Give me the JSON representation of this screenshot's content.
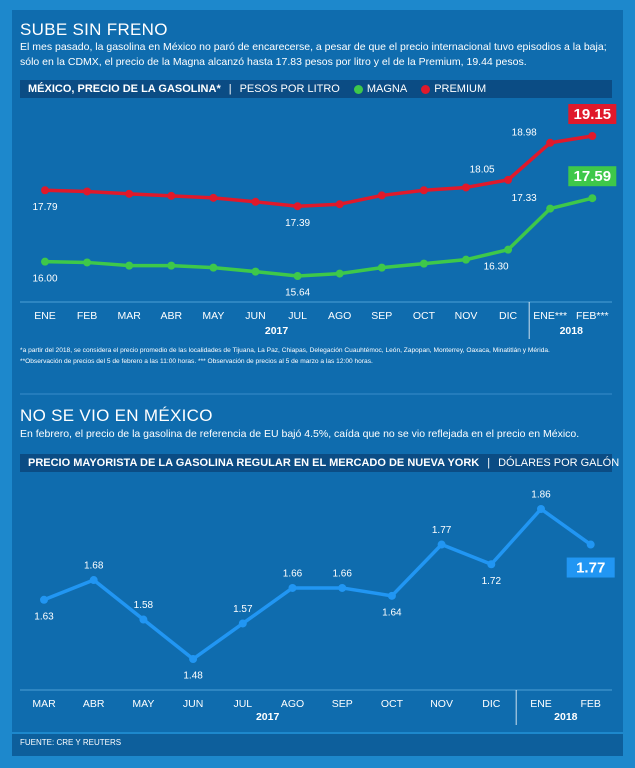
{
  "chart_data": [
    {
      "type": "line",
      "title": "SUBE SIN FRENO",
      "subtitle": "El mes pasado, la gasolina en México no paró de encarecerse, a pesar de que el precio internacional tuvo episodios a la baja; sólo en la CDMX, el precio de la Magna alcanzó hasta 17.83 pesos por litro y el de la Premium, 19.44 pesos.",
      "chart_title": "MÉXICO, PRECIO DE LA GASOLINA*",
      "unit": "PESOS POR LITRO",
      "categories": [
        "ENE",
        "FEB",
        "MAR",
        "ABR",
        "MAY",
        "JUN",
        "JUL",
        "AGO",
        "SEP",
        "OCT",
        "NOV",
        "DIC",
        "ENE***",
        "FEB***"
      ],
      "groups": [
        {
          "label": "2017",
          "count": 12
        },
        {
          "label": "2018",
          "count": 2
        }
      ],
      "series": [
        {
          "name": "MAGNA",
          "color": "#3ec84a",
          "values": [
            16.0,
            15.98,
            15.9,
            15.9,
            15.85,
            15.75,
            15.64,
            15.7,
            15.85,
            15.95,
            16.05,
            16.3,
            17.33,
            17.59
          ],
          "value_labels": [
            "16.00",
            null,
            null,
            null,
            null,
            null,
            "15.64",
            null,
            null,
            null,
            null,
            "16.30",
            "17.33",
            "17.59"
          ]
        },
        {
          "name": "PREMIUM",
          "color": "#e0192b",
          "values": [
            17.79,
            17.76,
            17.7,
            17.65,
            17.6,
            17.5,
            17.39,
            17.44,
            17.66,
            17.79,
            17.86,
            18.05,
            18.98,
            19.15
          ],
          "value_labels": [
            "17.79",
            null,
            null,
            null,
            null,
            null,
            "17.39",
            null,
            null,
            null,
            null,
            "18.05",
            "18.98",
            "19.15"
          ]
        }
      ],
      "notes": [
        "*a partir del 2018, se considera el precio promedio de las localidades de Tijuana, La Paz, Chiapas, Delegación Cuauhtémoc, León, Zapopan, Monterrey, Oaxaca, Minatitlán y Mérida.",
        "**Observación de precios del 5 de febrero a las 11:00 horas. *** Observación de precios al 5 de marzo a las 12:00 horas."
      ]
    },
    {
      "type": "line",
      "title": "NO SE VIO EN MÉXICO",
      "subtitle": "En febrero, el precio de la gasolina de referencia de EU bajó 4.5%, caída que no se vio reflejada en el precio en México.",
      "chart_title": "PRECIO MAYORISTA DE LA GASOLINA REGULAR EN EL MERCADO DE NUEVA YORK",
      "unit": "DÓLARES POR GALÓN",
      "categories": [
        "MAR",
        "ABR",
        "MAY",
        "JUN",
        "JUL",
        "AGO",
        "SEP",
        "OCT",
        "NOV",
        "DIC",
        "ENE",
        "FEB"
      ],
      "groups": [
        {
          "label": "2017",
          "count": 10
        },
        {
          "label": "2018",
          "count": 2
        }
      ],
      "color": "#2196f3",
      "values": [
        1.63,
        1.68,
        1.58,
        1.48,
        1.57,
        1.66,
        1.66,
        1.64,
        1.77,
        1.72,
        1.86,
        1.77
      ]
    }
  ],
  "source": "FUENTE: CRE Y REUTERS"
}
